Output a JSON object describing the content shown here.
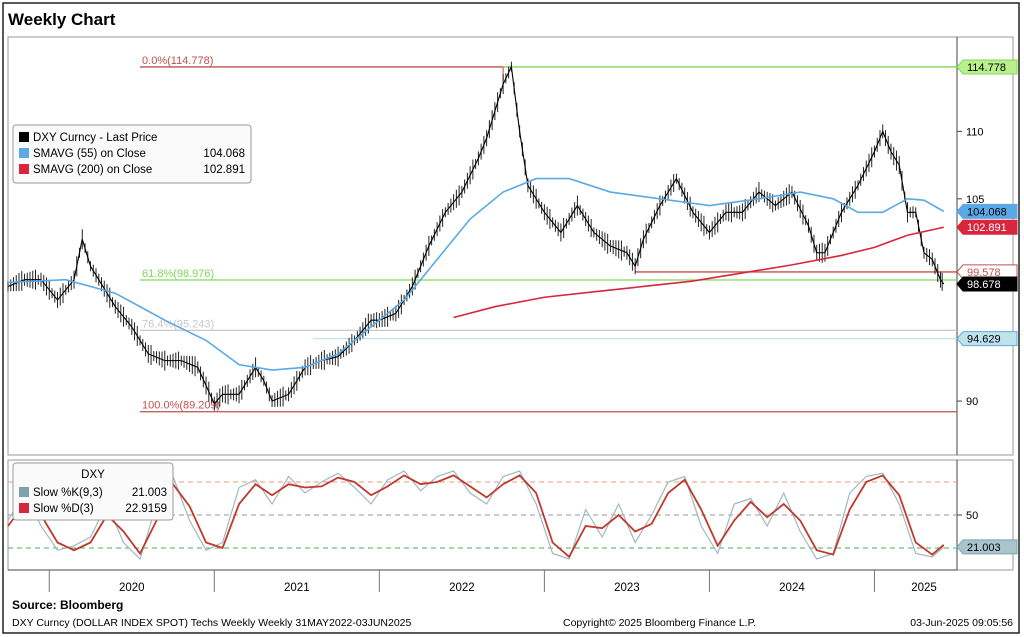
{
  "header": {
    "title": "Weekly Chart"
  },
  "footer": {
    "source": "Source:  Bloomberg",
    "security_line": "DXY Curncy (DOLLAR INDEX SPOT) Techs Weekly   Weekly 31MAY2022-03JUN2025",
    "copyright": "Copyright© 2025 Bloomberg Finance L.P.",
    "timestamp": "03-Jun-2025 09:05:56"
  },
  "colors": {
    "price": "#000000",
    "sma55": "#5aa9e6",
    "sma200": "#d7263d",
    "fib_red": "#c0504d",
    "fib_green": "#7ed957",
    "fib_gray": "#c8c8c8",
    "fib_teal": "#bfe3ea",
    "stoch_k": "#9fb8c4",
    "stoch_d": "#c0392b"
  },
  "chart_data": [
    {
      "type": "line",
      "panel": "price",
      "ylim": [
        86,
        117
      ],
      "xlim": [
        2019.75,
        2025.5
      ],
      "y_ticks": [
        90,
        105,
        110
      ],
      "x_tick_labels": [
        "2020",
        "2021",
        "2022",
        "2023",
        "2024",
        "2025"
      ],
      "legend": {
        "position": "top-left",
        "entries": [
          {
            "label": "DXY Curncy - Last Price",
            "value": "",
            "color": "#000000"
          },
          {
            "label": "SMAVG (55)  on Close",
            "value": "104.068",
            "color": "#5aa9e6"
          },
          {
            "label": "SMAVG (200)  on Close",
            "value": "102.891",
            "color": "#d7263d"
          }
        ]
      },
      "series": [
        {
          "name": "DXY Curncy - Last Price",
          "x": [
            2019.75,
            2019.85,
            2019.95,
            2020.05,
            2020.15,
            2020.2,
            2020.25,
            2020.3,
            2020.4,
            2020.5,
            2020.6,
            2020.7,
            2020.8,
            2020.9,
            2021.0,
            2021.05,
            2021.15,
            2021.25,
            2021.3,
            2021.35,
            2021.45,
            2021.55,
            2021.65,
            2021.75,
            2021.85,
            2021.95,
            2022.0,
            2022.1,
            2022.2,
            2022.3,
            2022.4,
            2022.5,
            2022.6,
            2022.65,
            2022.7,
            2022.75,
            2022.8,
            2022.85,
            2022.9,
            2023.0,
            2023.1,
            2023.2,
            2023.3,
            2023.4,
            2023.5,
            2023.55,
            2023.6,
            2023.7,
            2023.8,
            2023.9,
            2024.0,
            2024.1,
            2024.2,
            2024.3,
            2024.4,
            2024.5,
            2024.6,
            2024.65,
            2024.7,
            2024.8,
            2024.9,
            2025.0,
            2025.05,
            2025.1,
            2025.15,
            2025.2,
            2025.25,
            2025.3,
            2025.35,
            2025.4,
            2025.42
          ],
          "values": [
            98.5,
            99.0,
            99.0,
            97.5,
            99.0,
            102.0,
            100.0,
            99.0,
            97.0,
            95.5,
            93.5,
            93.0,
            93.0,
            92.5,
            89.8,
            90.5,
            90.5,
            92.5,
            91.5,
            90.0,
            90.5,
            92.5,
            93.0,
            93.3,
            94.5,
            96.0,
            96.0,
            96.5,
            98.5,
            101.5,
            104.0,
            105.5,
            108.0,
            109.5,
            111.5,
            113.5,
            114.8,
            110.0,
            106.0,
            104.0,
            102.5,
            104.5,
            102.5,
            101.5,
            101.0,
            100.0,
            102.0,
            104.5,
            106.5,
            104.0,
            102.5,
            104.0,
            104.0,
            105.5,
            104.5,
            105.5,
            103.0,
            101.0,
            101.0,
            104.0,
            106.0,
            108.5,
            110.0,
            108.5,
            107.5,
            104.0,
            104.0,
            101.0,
            100.5,
            99.0,
            98.678
          ]
        },
        {
          "name": "SMAVG (55)  on Close",
          "x": [
            2019.75,
            2020.1,
            2020.4,
            2020.7,
            2020.95,
            2021.15,
            2021.35,
            2021.55,
            2021.75,
            2021.95,
            2022.15,
            2022.35,
            2022.55,
            2022.75,
            2022.95,
            2023.15,
            2023.4,
            2023.7,
            2024.0,
            2024.3,
            2024.55,
            2024.75,
            2024.9,
            2025.05,
            2025.2,
            2025.3,
            2025.42
          ],
          "values": [
            98.8,
            99.0,
            98.0,
            96.0,
            94.5,
            92.7,
            92.3,
            92.5,
            93.5,
            95.5,
            97.5,
            100.5,
            103.5,
            105.5,
            106.5,
            106.5,
            105.5,
            105.0,
            104.5,
            105.0,
            105.5,
            105.0,
            104.0,
            104.0,
            105.0,
            104.9,
            104.068
          ]
        },
        {
          "name": "SMAVG (200)  on Close",
          "x": [
            2022.45,
            2022.7,
            2023.0,
            2023.3,
            2023.6,
            2023.9,
            2024.2,
            2024.5,
            2024.8,
            2025.0,
            2025.2,
            2025.42
          ],
          "values": [
            96.2,
            97.0,
            97.7,
            98.1,
            98.5,
            98.9,
            99.5,
            100.1,
            100.8,
            101.4,
            102.3,
            102.891
          ]
        }
      ],
      "levels": [
        {
          "label": "0.0%(114.778)",
          "value": 114.778,
          "color": "#c0504d",
          "x_start": 2020.55,
          "x_end": 2022.75,
          "tag": ""
        },
        {
          "label": "",
          "value": 114.778,
          "color": "#7ed957",
          "x_start": 2022.75,
          "x_end": 2025.5,
          "tag": "114.778"
        },
        {
          "label": "61.8%(98.976)",
          "value": 98.976,
          "color": "#7ed957",
          "x_start": 2020.55,
          "x_end": 2025.5,
          "tag": ""
        },
        {
          "label": "76.4%(95.243)",
          "value": 95.243,
          "color": "#c8c8c8",
          "x_start": 2020.55,
          "x_end": 2025.5,
          "tag": ""
        },
        {
          "label": "",
          "value": 94.629,
          "color": "#bfe3ea",
          "x_start": 2021.6,
          "x_end": 2025.5,
          "tag": "94.629"
        },
        {
          "label": "100.0%(89.209)",
          "value": 89.209,
          "color": "#c0504d",
          "x_start": 2020.55,
          "x_end": 2025.5,
          "tag": ""
        },
        {
          "label": "",
          "value": 99.578,
          "color": "#c0504d",
          "x_start": 2023.55,
          "x_end": 2025.5,
          "tag": "99.578"
        }
      ],
      "value_tags": [
        {
          "value": 104.068,
          "text": "104.068",
          "bg": "#5aa9e6",
          "fg": "#000000"
        },
        {
          "value": 102.891,
          "text": "102.891",
          "bg": "#d7263d",
          "fg": "#ffffff"
        },
        {
          "value": 98.678,
          "text": "98.678",
          "bg": "#000000",
          "fg": "#ffffff"
        }
      ]
    },
    {
      "type": "line",
      "panel": "stochastic",
      "title": "DXY",
      "ylim": [
        0,
        100
      ],
      "xlim": [
        2019.75,
        2025.5
      ],
      "y_ticks": [
        50
      ],
      "reference_lines": [
        {
          "value": 80,
          "color": "#e89a7a"
        },
        {
          "value": 50,
          "color": "#9a9a9a"
        },
        {
          "value": 20,
          "color": "#4caf50"
        }
      ],
      "legend": {
        "position": "top-left",
        "entries": [
          {
            "label": "Slow %K(9,3)",
            "value": "21.003",
            "color": "#7fa3ad"
          },
          {
            "label": "Slow %D(3)",
            "value": "22.9159",
            "color": "#d7263d"
          }
        ]
      },
      "value_tags": [
        {
          "value": 21.003,
          "text": "21.003",
          "bg": "#a8c4cc",
          "fg": "#000000"
        }
      ],
      "series": [
        {
          "name": "Slow %K(9,3)",
          "x": [
            2019.75,
            2019.85,
            2019.95,
            2020.05,
            2020.15,
            2020.25,
            2020.35,
            2020.45,
            2020.55,
            2020.65,
            2020.75,
            2020.85,
            2020.95,
            2021.05,
            2021.15,
            2021.25,
            2021.35,
            2021.45,
            2021.55,
            2021.65,
            2021.75,
            2021.85,
            2021.95,
            2022.05,
            2022.15,
            2022.25,
            2022.35,
            2022.45,
            2022.55,
            2022.65,
            2022.75,
            2022.85,
            2022.95,
            2023.05,
            2023.15,
            2023.25,
            2023.35,
            2023.45,
            2023.55,
            2023.65,
            2023.75,
            2023.85,
            2023.95,
            2024.05,
            2024.15,
            2024.25,
            2024.35,
            2024.45,
            2024.55,
            2024.65,
            2024.75,
            2024.85,
            2024.95,
            2025.05,
            2025.15,
            2025.25,
            2025.35,
            2025.42
          ],
          "values": [
            45,
            70,
            40,
            18,
            22,
            30,
            60,
            25,
            10,
            60,
            85,
            45,
            18,
            25,
            75,
            82,
            60,
            85,
            70,
            80,
            88,
            75,
            60,
            82,
            90,
            72,
            85,
            90,
            70,
            60,
            85,
            90,
            60,
            15,
            10,
            55,
            30,
            60,
            25,
            50,
            80,
            85,
            40,
            15,
            60,
            65,
            40,
            70,
            35,
            10,
            15,
            70,
            85,
            88,
            60,
            15,
            12,
            21
          ]
        },
        {
          "name": "Slow %D(3)",
          "x": [
            2019.75,
            2019.85,
            2019.95,
            2020.05,
            2020.15,
            2020.25,
            2020.35,
            2020.45,
            2020.55,
            2020.65,
            2020.75,
            2020.85,
            2020.95,
            2021.05,
            2021.15,
            2021.25,
            2021.35,
            2021.45,
            2021.55,
            2021.65,
            2021.75,
            2021.85,
            2021.95,
            2022.05,
            2022.15,
            2022.25,
            2022.35,
            2022.45,
            2022.55,
            2022.65,
            2022.75,
            2022.85,
            2022.95,
            2023.05,
            2023.15,
            2023.25,
            2023.35,
            2023.45,
            2023.55,
            2023.65,
            2023.75,
            2023.85,
            2023.95,
            2024.05,
            2024.15,
            2024.25,
            2024.35,
            2024.45,
            2024.55,
            2024.65,
            2024.75,
            2024.85,
            2024.95,
            2025.05,
            2025.15,
            2025.25,
            2025.35,
            2025.42
          ],
          "values": [
            40,
            60,
            50,
            25,
            18,
            25,
            50,
            35,
            15,
            45,
            78,
            58,
            25,
            20,
            60,
            78,
            68,
            78,
            75,
            76,
            84,
            80,
            68,
            76,
            86,
            78,
            80,
            86,
            76,
            66,
            78,
            86,
            70,
            25,
            12,
            40,
            38,
            50,
            35,
            42,
            70,
            82,
            55,
            22,
            45,
            62,
            48,
            60,
            45,
            18,
            14,
            55,
            80,
            86,
            68,
            25,
            14,
            22.9159
          ]
        }
      ]
    }
  ]
}
